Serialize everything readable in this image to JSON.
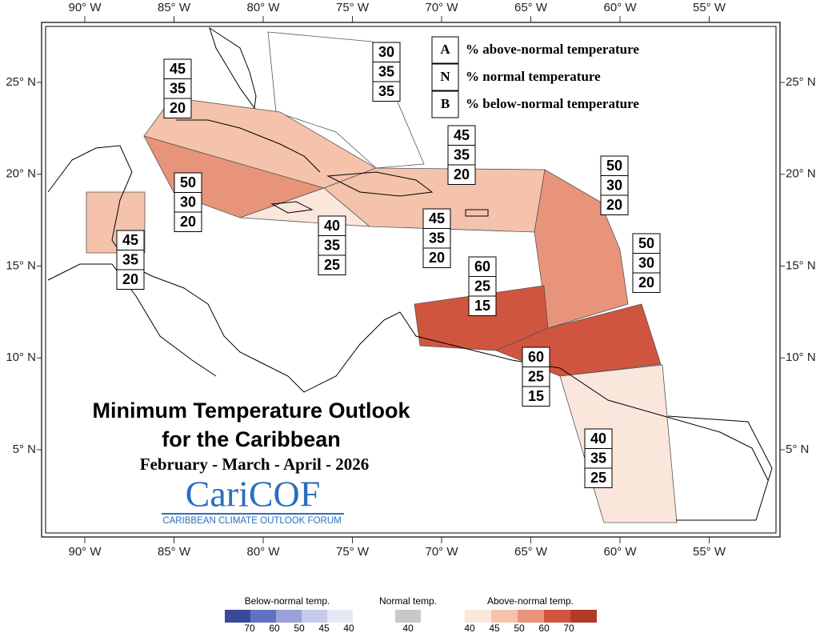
{
  "map": {
    "title": "Minimum Temperature Outlook",
    "subtitle": "for the Caribbean",
    "period": "February - March - April - 2026",
    "logo": "CariCOF",
    "logo_subtitle": "CARIBBEAN CLIMATE OUTLOOK FORUM",
    "longitude_labels": [
      "90° W",
      "85° W",
      "80° W",
      "75° W",
      "70° W",
      "65° W",
      "60° W",
      "55° W"
    ],
    "latitude_labels": [
      "25° N",
      "20° N",
      "15° N",
      "10° N",
      "5° N"
    ],
    "key": [
      {
        "letter": "A",
        "text": "% above-normal temperature"
      },
      {
        "letter": "N",
        "text": "% normal temperature"
      },
      {
        "letter": "B",
        "text": "% below-normal temperature"
      }
    ],
    "regions": [
      {
        "A": 30,
        "N": 35,
        "B": 35
      },
      {
        "A": 45,
        "N": 35,
        "B": 20
      },
      {
        "A": 50,
        "N": 30,
        "B": 20
      },
      {
        "A": 45,
        "N": 35,
        "B": 20
      },
      {
        "A": 40,
        "N": 35,
        "B": 25
      },
      {
        "A": 45,
        "N": 35,
        "B": 20
      },
      {
        "A": 45,
        "N": 35,
        "B": 20
      },
      {
        "A": 50,
        "N": 30,
        "B": 20
      },
      {
        "A": 50,
        "N": 30,
        "B": 20
      },
      {
        "A": 60,
        "N": 25,
        "B": 15
      },
      {
        "A": 60,
        "N": 25,
        "B": 15
      },
      {
        "A": 40,
        "N": 35,
        "B": 25
      }
    ]
  },
  "legend": {
    "below_title": "Below-normal temp.",
    "below_labels": [
      70,
      60,
      50,
      45,
      40
    ],
    "normal_title": "Normal temp.",
    "normal_labels": [
      40
    ],
    "above_title": "Above-normal temp.",
    "above_labels": [
      40,
      45,
      50,
      60,
      70
    ]
  }
}
